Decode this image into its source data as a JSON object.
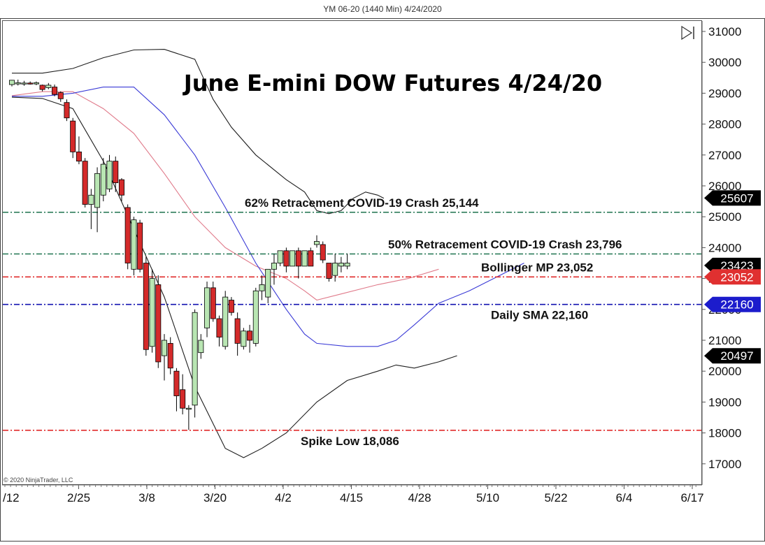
{
  "header": {
    "caption": "YM 06-20 (1440 Min)  4/24/2020"
  },
  "copyright": "© 2020 NinjaTrader, LLC",
  "play_icon": "play-end-icon",
  "colors": {
    "up_candle": "#b9e6b3",
    "down_candle": "#d42a2a",
    "bb_upper_lower": "#1e1e1e",
    "bb_middle": "#e07a8a",
    "sma": "#3a3ad6",
    "level_green": "#2e7d5b",
    "level_red": "#e02b2b",
    "level_blue": "#1212b0",
    "tag_black": "#000000",
    "tag_red": "#e03030",
    "tag_blue": "#1c1ccc"
  },
  "chart_data": {
    "type": "candlestick",
    "title": "June E-mini DOW Futures 4/24/20",
    "x_ticks": [
      "/12",
      "2/25",
      "3/8",
      "3/20",
      "4/2",
      "4/15",
      "4/28",
      "5/10",
      "5/22",
      "6/4",
      "6/17"
    ],
    "y_ticks": [
      31000,
      30000,
      29000,
      28000,
      27000,
      26000,
      25000,
      24000,
      23000,
      22000,
      21000,
      20000,
      19000,
      18000,
      17000
    ],
    "ylim": [
      16400,
      31300
    ],
    "grid": false,
    "candles": [
      [
        29280,
        29420,
        29220,
        29430
      ],
      [
        29300,
        29340,
        29250,
        29440
      ],
      [
        29320,
        29330,
        29240,
        29400
      ],
      [
        29330,
        29320,
        29280,
        29380
      ],
      [
        29300,
        29340,
        29260,
        29380
      ],
      [
        29260,
        29120,
        29060,
        29280
      ],
      [
        29180,
        29260,
        29130,
        29330
      ],
      [
        29200,
        28960,
        28900,
        29280
      ],
      [
        29020,
        28820,
        28720,
        29060
      ],
      [
        28700,
        28200,
        28100,
        28800
      ],
      [
        28100,
        27100,
        26900,
        28200
      ],
      [
        27100,
        26800,
        26700,
        27600
      ],
      [
        26800,
        25400,
        25300,
        26900
      ],
      [
        25400,
        25700,
        24600,
        25900
      ],
      [
        25300,
        26400,
        24500,
        26600
      ],
      [
        25700,
        26700,
        25500,
        26900
      ],
      [
        25900,
        26800,
        25800,
        27000
      ],
      [
        26800,
        26100,
        25800,
        26950
      ],
      [
        26200,
        25700,
        25500,
        26250
      ],
      [
        25300,
        23500,
        23300,
        25400
      ],
      [
        23300,
        24900,
        23100,
        25000
      ],
      [
        24800,
        23300,
        23200,
        24900
      ],
      [
        23500,
        20700,
        20500,
        23700
      ],
      [
        20800,
        23000,
        20600,
        23300
      ],
      [
        22800,
        20300,
        20100,
        23100
      ],
      [
        20500,
        21000,
        19700,
        21200
      ],
      [
        20900,
        20100,
        19900,
        21100
      ],
      [
        20000,
        19200,
        18700,
        20100
      ],
      [
        19400,
        18800,
        18600,
        19900
      ],
      [
        18800,
        18800,
        18100,
        18900
      ],
      [
        18900,
        21900,
        18500,
        22000
      ],
      [
        20600,
        21000,
        20400,
        21200
      ],
      [
        21400,
        22700,
        21100,
        22900
      ],
      [
        22700,
        21700,
        21600,
        22900
      ],
      [
        21700,
        21100,
        20800,
        21800
      ],
      [
        20800,
        22400,
        20700,
        22600
      ],
      [
        22300,
        21900,
        21800,
        22400
      ],
      [
        21700,
        20900,
        20500,
        21900
      ],
      [
        20800,
        21300,
        20700,
        21400
      ],
      [
        21300,
        21000,
        20600,
        21500
      ],
      [
        20900,
        22600,
        20800,
        22700
      ],
      [
        22600,
        22800,
        22300,
        23100
      ],
      [
        22400,
        23300,
        22200,
        23300
      ],
      [
        23300,
        23500,
        22800,
        23800
      ],
      [
        23500,
        23900,
        23400,
        23900
      ],
      [
        23900,
        23400,
        23200,
        24000
      ],
      [
        23400,
        23900,
        23400,
        23900
      ],
      [
        23900,
        23400,
        23000,
        24000
      ],
      [
        23400,
        23900,
        23400,
        23900
      ],
      [
        23900,
        23400,
        23400,
        24000
      ],
      [
        24100,
        24200,
        24000,
        24400
      ],
      [
        24100,
        23600,
        23500,
        24200
      ],
      [
        23500,
        23000,
        22900,
        23500
      ],
      [
        23100,
        23500,
        22900,
        23800
      ],
      [
        23400,
        23500,
        23200,
        23700
      ],
      [
        23400,
        23500,
        23300,
        23800
      ]
    ],
    "bollinger_upper": [
      [
        0,
        29650
      ],
      [
        5,
        29650
      ],
      [
        10,
        29800
      ],
      [
        15,
        30150
      ],
      [
        20,
        30400
      ],
      [
        25,
        30420
      ],
      [
        30,
        30100
      ],
      [
        33,
        28800
      ],
      [
        36,
        27900
      ],
      [
        40,
        27000
      ],
      [
        45,
        26200
      ],
      [
        48,
        25800
      ],
      [
        50,
        25200
      ],
      [
        52,
        25100
      ],
      [
        54,
        25200
      ],
      [
        56,
        25600
      ],
      [
        58,
        25800
      ],
      [
        60,
        25700
      ],
      [
        61,
        25600
      ]
    ],
    "bollinger_lower": [
      [
        0,
        28870
      ],
      [
        5,
        28830
      ],
      [
        10,
        28500
      ],
      [
        15,
        26800
      ],
      [
        20,
        24600
      ],
      [
        25,
        22400
      ],
      [
        30,
        19500
      ],
      [
        35,
        17500
      ],
      [
        38,
        17200
      ],
      [
        41,
        17500
      ],
      [
        45,
        18000
      ],
      [
        50,
        19000
      ],
      [
        55,
        19700
      ],
      [
        60,
        20000
      ],
      [
        63,
        20200
      ],
      [
        66,
        20100
      ],
      [
        70,
        20300
      ],
      [
        73,
        20500
      ]
    ],
    "bollinger_middle": [
      [
        0,
        28920
      ],
      [
        5,
        29050
      ],
      [
        10,
        29050
      ],
      [
        15,
        28500
      ],
      [
        20,
        27700
      ],
      [
        25,
        26400
      ],
      [
        30,
        25000
      ],
      [
        35,
        24000
      ],
      [
        40,
        23400
      ],
      [
        45,
        23000
      ],
      [
        48,
        22600
      ],
      [
        50,
        22300
      ],
      [
        54,
        22500
      ],
      [
        60,
        22800
      ],
      [
        65,
        23000
      ],
      [
        70,
        23300
      ]
    ],
    "sma": [
      [
        0,
        28900
      ],
      [
        5,
        28900
      ],
      [
        10,
        29000
      ],
      [
        15,
        29200
      ],
      [
        20,
        29200
      ],
      [
        25,
        28300
      ],
      [
        30,
        27000
      ],
      [
        35,
        25300
      ],
      [
        40,
        23500
      ],
      [
        45,
        22000
      ],
      [
        48,
        21200
      ],
      [
        50,
        20900
      ],
      [
        55,
        20800
      ],
      [
        60,
        20800
      ],
      [
        63,
        21000
      ],
      [
        66,
        21500
      ],
      [
        70,
        22200
      ],
      [
        75,
        22600
      ],
      [
        80,
        23100
      ],
      [
        84,
        23500
      ]
    ],
    "levels": [
      {
        "label": "62% Retracement COVID-19 Crash 25,144",
        "value": 25144,
        "color": "green"
      },
      {
        "label": "50% Retracement COVID-19 Crash 23,796",
        "value": 23796,
        "color": "green"
      },
      {
        "label": "Bollinger MP 23,052",
        "value": 23052,
        "color": "red"
      },
      {
        "label": "Daily SMA 22,160",
        "value": 22160,
        "color": "blue"
      },
      {
        "label": "Spike Low 18,086",
        "value": 18086,
        "color": "red"
      }
    ],
    "price_tags": [
      {
        "text": "25607",
        "value": 25607,
        "color": "black"
      },
      {
        "text": "23423",
        "value": 23423,
        "color": "black"
      },
      {
        "text": "23052",
        "value": 23052,
        "color": "red"
      },
      {
        "text": "22160",
        "value": 22160,
        "color": "blue"
      },
      {
        "text": "20497",
        "value": 20497,
        "color": "black"
      }
    ]
  }
}
